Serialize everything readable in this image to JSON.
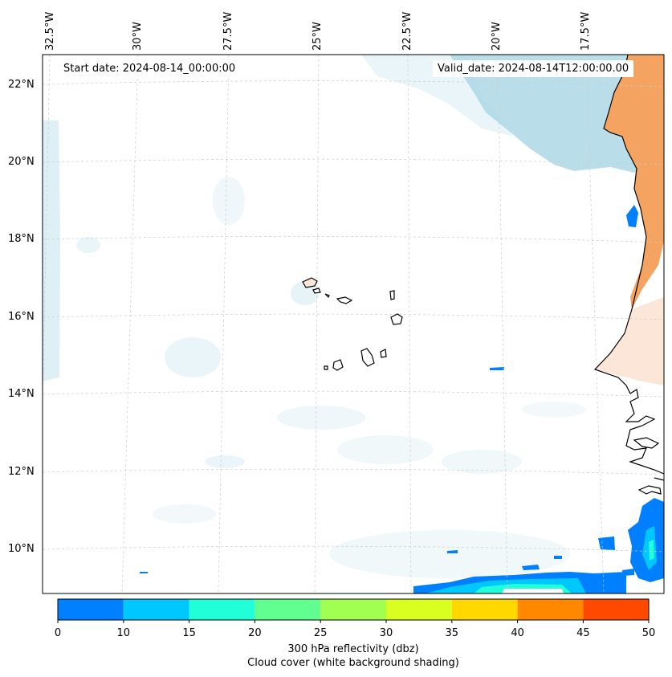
{
  "map": {
    "start_date": "Start date: 2024-08-14_00:00:00",
    "valid_date": "Valid_date: 2024-08-14T12:00:00.00",
    "longitude_labels": [
      "32.5°W",
      "30°W",
      "27.5°W",
      "25°W",
      "22.5°W",
      "20°W",
      "17.5°W"
    ],
    "latitude_labels": [
      "22°N",
      "20°N",
      "18°N",
      "16°N",
      "14°N",
      "12°N",
      "10°N"
    ],
    "region": "Cape Verde / West African coast",
    "colors": {
      "land": "#f4a460",
      "cloud": "#add8e6",
      "coast": "#000000",
      "grid": "#bbbbbb"
    }
  },
  "colorbar": {
    "ticks": [
      "0",
      "10",
      "15",
      "20",
      "25",
      "30",
      "35",
      "40",
      "45",
      "50"
    ],
    "colors": [
      "#0080ff",
      "#00c8ff",
      "#20ffd8",
      "#60ff90",
      "#a0ff50",
      "#d8ff20",
      "#ffd800",
      "#ff8800",
      "#ff4800"
    ],
    "label_line1": "300 hPa reflectivity (dbz)",
    "label_line2": "Cloud cover (white background shading)"
  }
}
